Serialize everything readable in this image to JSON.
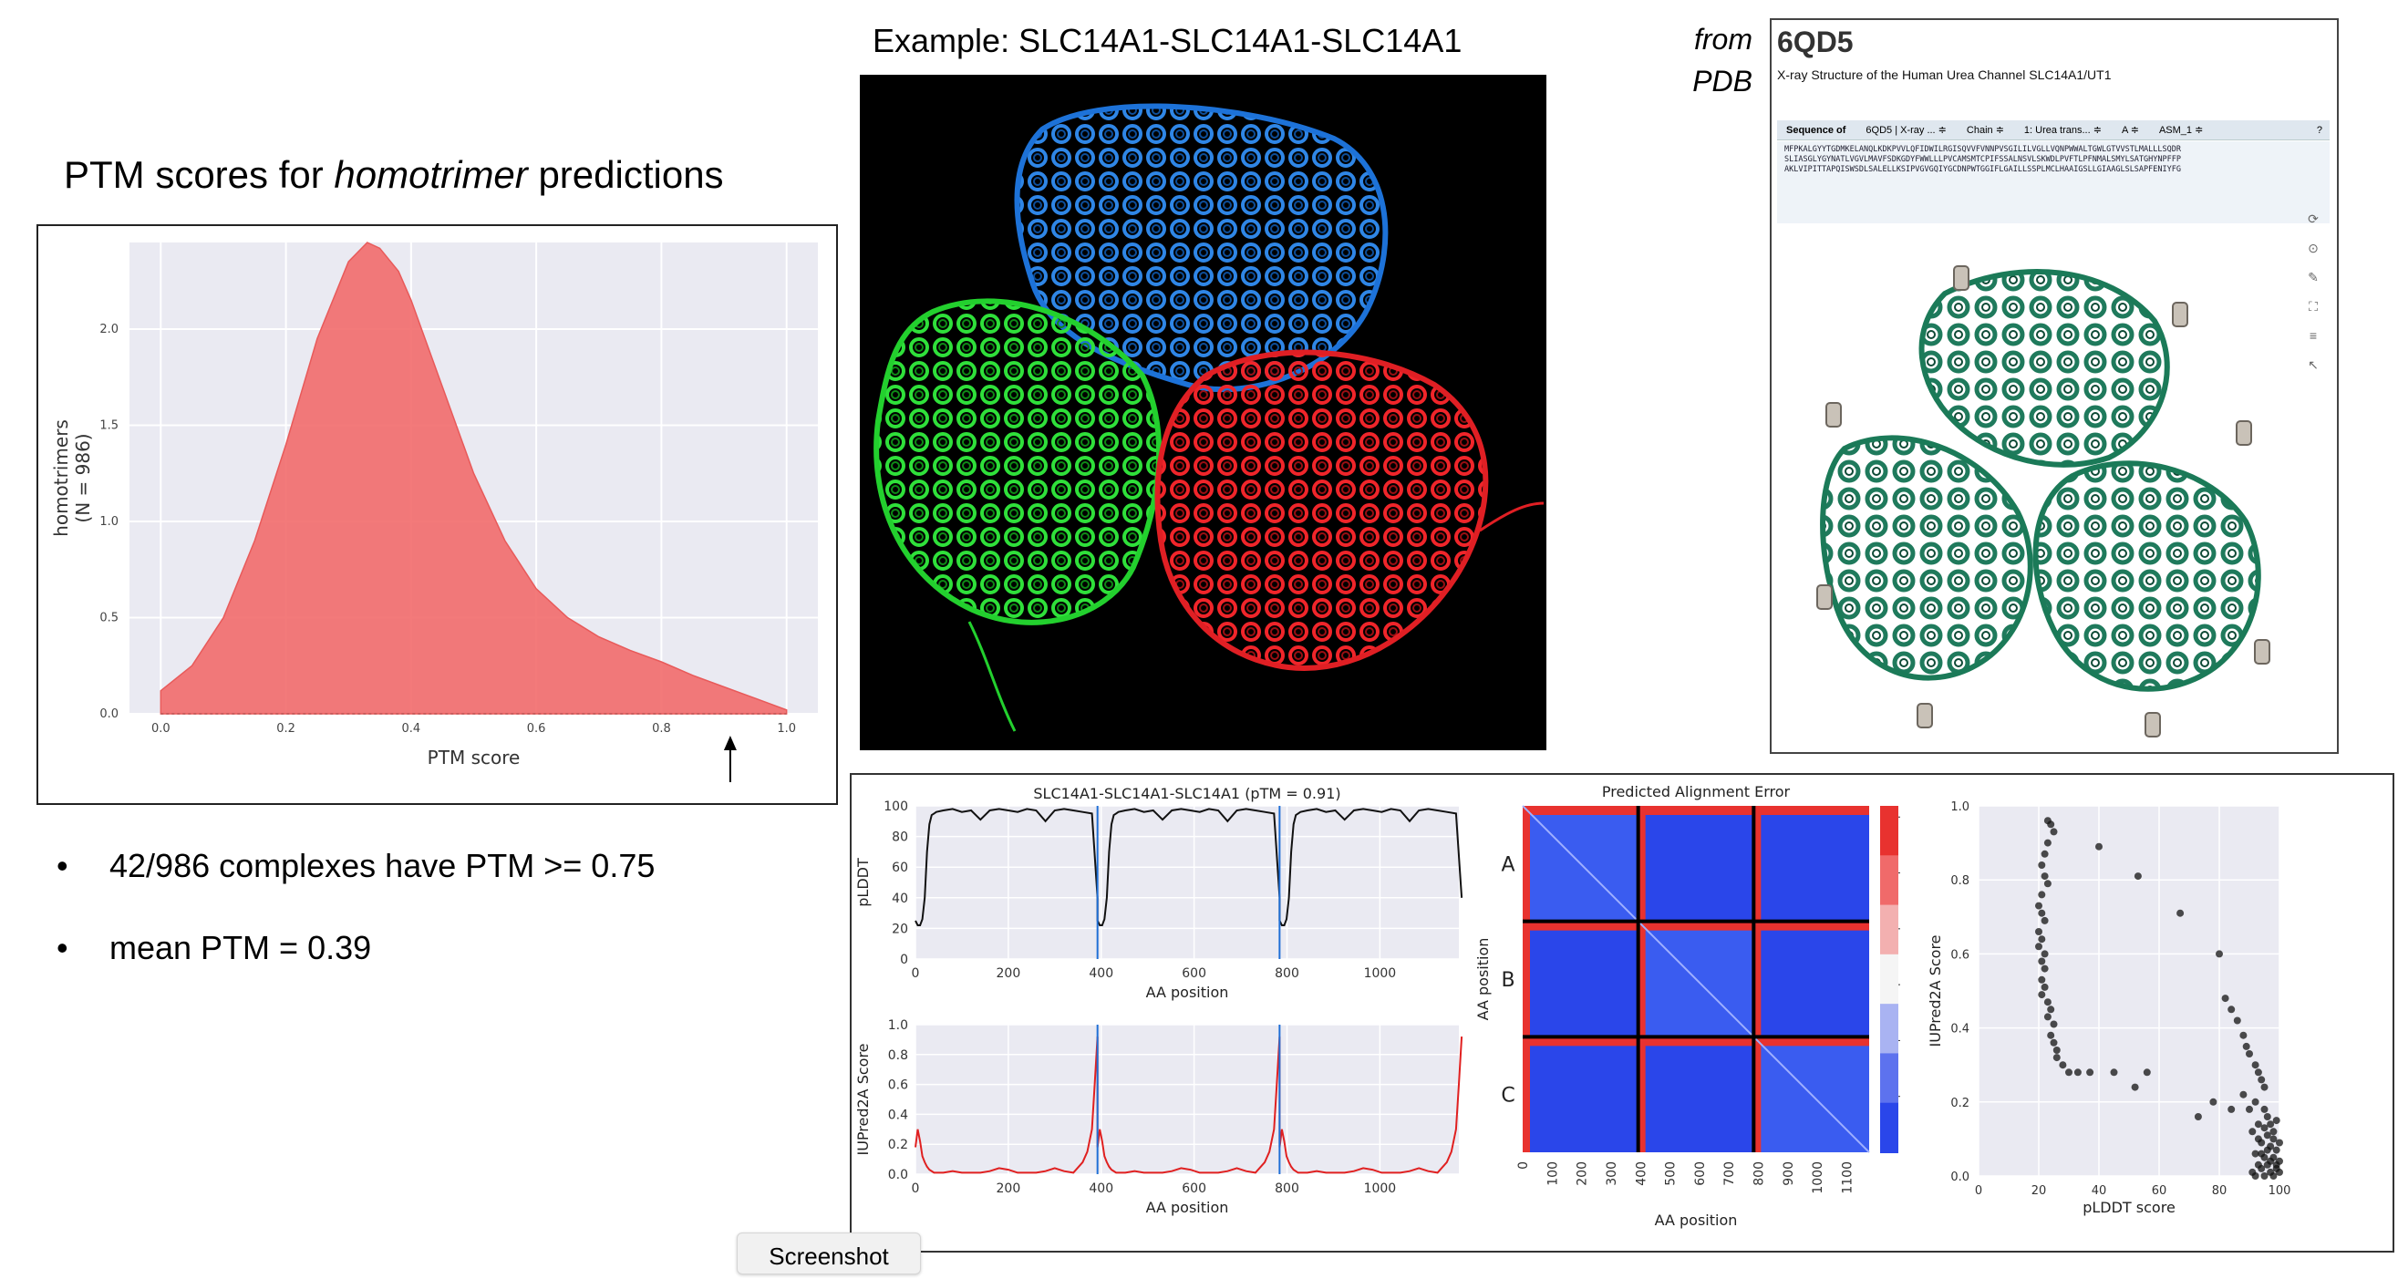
{
  "left": {
    "title_prefix": "PTM scores for ",
    "title_em": "homotrimer",
    "title_suffix": " predictions",
    "bullets": [
      "42/986 complexes have PTM >= 0.75",
      "mean PTM = 0.39"
    ]
  },
  "example_title": "Example: SLC14A1-SLC14A1-SLC14A1",
  "pdb": {
    "from_label_1": "from",
    "from_label_2": "PDB",
    "id": "6QD5",
    "description": "X-ray Structure of the Human Urea Channel SLC14A1/UT1",
    "toolbar": [
      "Sequence of",
      "6QD5 | X-ray ... ≑",
      "Chain ≑",
      "1: Urea trans... ≑",
      "A ≑",
      "ASM_1 ≑"
    ],
    "help": "?",
    "sequence_lines": [
      "MFPKALGYYTGDMKELANQLKDKPVVLQFIDWILRGISQVVFVNNPVSGILILVGLLVQNPWWALTGWLGTVVSTLMALLLSQDR",
      "SLIASGLYGYNATLVGVLMAVFSDKGDYFWWLLLPVCAMSMTCPIFSSALNSVLSKWDLPVFTLPFNMALSMYLSATGHYNPFFP",
      "AKLVIPITTAPQISWSDLSALELLKSIPVGVGQIYGCDNPWTGGIFLGAILLSSPLMCLHAAIGSLLGIAAGLSLSAPFENIYFG"
    ],
    "viewer_tools": [
      "⟳",
      "⊙",
      "✎",
      "⛶",
      "≡",
      "↖"
    ]
  },
  "density_chart": {
    "chart_data": {
      "type": "area",
      "xlabel": "PTM score",
      "ylabel": "homotrimers\n(N = 986)",
      "ylabel_line1": "homotrimers",
      "ylabel_line2": "(N = 986)",
      "xlim": [
        -0.05,
        1.05
      ],
      "ylim": [
        0,
        2.45
      ],
      "xticks": [
        "0.0",
        "0.2",
        "0.4",
        "0.6",
        "0.8",
        "1.0"
      ],
      "yticks": [
        "0.0",
        "0.5",
        "1.0",
        "1.5",
        "2.0"
      ],
      "x": [
        0.0,
        0.05,
        0.1,
        0.15,
        0.2,
        0.25,
        0.3,
        0.33,
        0.35,
        0.38,
        0.4,
        0.45,
        0.5,
        0.55,
        0.6,
        0.65,
        0.7,
        0.75,
        0.8,
        0.85,
        0.9,
        0.95,
        1.0
      ],
      "y": [
        0.12,
        0.25,
        0.5,
        0.9,
        1.4,
        1.95,
        2.35,
        2.45,
        2.42,
        2.3,
        2.15,
        1.7,
        1.25,
        0.9,
        0.65,
        0.5,
        0.4,
        0.33,
        0.27,
        0.2,
        0.14,
        0.08,
        0.02
      ],
      "arrow_x": 0.91,
      "grid": true,
      "color": "#f26b6b"
    }
  },
  "plddt_chart": {
    "chart_data": {
      "type": "line",
      "title": "SLC14A1-SLC14A1-SLC14A1 (pTM = 0.91)",
      "xlabel": "AA position",
      "ylabel": "pLDDT",
      "xlim": [
        0,
        1170
      ],
      "ylim": [
        0,
        100
      ],
      "xticks": [
        "0",
        "200",
        "400",
        "600",
        "800",
        "1000"
      ],
      "yticks": [
        "0",
        "20",
        "40",
        "60",
        "80",
        "100"
      ],
      "chain_boundaries": [
        392,
        784
      ],
      "chain_length": 392,
      "profile_x": [
        0,
        5,
        10,
        15,
        20,
        25,
        30,
        35,
        40,
        45,
        60,
        80,
        100,
        120,
        140,
        160,
        180,
        200,
        220,
        240,
        260,
        280,
        300,
        320,
        340,
        360,
        380,
        392
      ],
      "profile_y": [
        25,
        22,
        22,
        26,
        40,
        70,
        88,
        94,
        95,
        96,
        97,
        98,
        96,
        97,
        91,
        97,
        98,
        97,
        96,
        98,
        97,
        90,
        97,
        98,
        97,
        96,
        95,
        40
      ],
      "color": "#111111",
      "boundary_color": "#1f6fd6"
    }
  },
  "iupred_chart": {
    "chart_data": {
      "type": "line",
      "xlabel": "AA position",
      "ylabel": "IUPred2A Score",
      "xlim": [
        0,
        1170
      ],
      "ylim": [
        0,
        1.0
      ],
      "xticks": [
        "0",
        "200",
        "400",
        "600",
        "800",
        "1000"
      ],
      "yticks": [
        "0.0",
        "0.2",
        "0.4",
        "0.6",
        "0.8",
        "1.0"
      ],
      "chain_boundaries": [
        392,
        784
      ],
      "profile_x": [
        0,
        5,
        10,
        15,
        20,
        25,
        30,
        40,
        60,
        80,
        100,
        120,
        140,
        160,
        180,
        200,
        220,
        240,
        260,
        280,
        300,
        320,
        340,
        360,
        370,
        380,
        386,
        392
      ],
      "profile_y": [
        0.18,
        0.3,
        0.22,
        0.12,
        0.08,
        0.05,
        0.03,
        0.01,
        0.01,
        0.02,
        0.01,
        0.01,
        0.01,
        0.02,
        0.04,
        0.03,
        0.01,
        0.01,
        0.01,
        0.02,
        0.04,
        0.02,
        0.01,
        0.08,
        0.15,
        0.3,
        0.6,
        0.92
      ],
      "color": "#e02020",
      "boundary_color": "#1f6fd6"
    }
  },
  "pae_chart": {
    "chart_data": {
      "type": "heatmap",
      "title": "Predicted Alignment Error",
      "xlabel": "AA position",
      "ylabel": "AA position",
      "xticks": [
        "0",
        "100",
        "200",
        "300",
        "400",
        "500",
        "600",
        "700",
        "800",
        "900",
        "1000",
        "1100"
      ],
      "row_labels": [
        "A",
        "B",
        "C"
      ],
      "colorbar_ticks": [
        "5",
        "10",
        "15",
        "20",
        "25",
        "30"
      ],
      "value_range": [
        0,
        31
      ],
      "chain_boundaries": [
        392,
        784
      ],
      "length": 1176
    }
  },
  "scatter_chart": {
    "chart_data": {
      "type": "scatter",
      "xlabel": "pLDDT score",
      "ylabel": "IUPred2A Score",
      "xlim": [
        0,
        100
      ],
      "ylim": [
        0,
        1.0
      ],
      "xticks": [
        "0",
        "20",
        "40",
        "60",
        "80",
        "100"
      ],
      "yticks": [
        "0.0",
        "0.2",
        "0.4",
        "0.6",
        "0.8",
        "1.0"
      ],
      "points": [
        [
          23,
          0.96
        ],
        [
          24,
          0.95
        ],
        [
          25,
          0.93
        ],
        [
          23,
          0.9
        ],
        [
          22,
          0.87
        ],
        [
          21,
          0.84
        ],
        [
          22,
          0.81
        ],
        [
          23,
          0.79
        ],
        [
          21,
          0.76
        ],
        [
          20,
          0.73
        ],
        [
          21,
          0.71
        ],
        [
          22,
          0.69
        ],
        [
          20,
          0.66
        ],
        [
          21,
          0.64
        ],
        [
          20,
          0.62
        ],
        [
          22,
          0.6
        ],
        [
          21,
          0.58
        ],
        [
          22,
          0.56
        ],
        [
          21,
          0.53
        ],
        [
          22,
          0.51
        ],
        [
          21,
          0.49
        ],
        [
          23,
          0.47
        ],
        [
          24,
          0.45
        ],
        [
          23,
          0.43
        ],
        [
          25,
          0.41
        ],
        [
          24,
          0.38
        ],
        [
          25,
          0.36
        ],
        [
          26,
          0.34
        ],
        [
          26,
          0.32
        ],
        [
          28,
          0.3
        ],
        [
          30,
          0.28
        ],
        [
          33,
          0.28
        ],
        [
          37,
          0.28
        ],
        [
          45,
          0.28
        ],
        [
          52,
          0.24
        ],
        [
          56,
          0.28
        ],
        [
          40,
          0.89
        ],
        [
          53,
          0.81
        ],
        [
          67,
          0.71
        ],
        [
          80,
          0.6
        ],
        [
          82,
          0.48
        ],
        [
          84,
          0.45
        ],
        [
          86,
          0.42
        ],
        [
          88,
          0.38
        ],
        [
          89,
          0.35
        ],
        [
          90,
          0.33
        ],
        [
          92,
          0.3
        ],
        [
          93,
          0.28
        ],
        [
          94,
          0.26
        ],
        [
          95,
          0.24
        ],
        [
          88,
          0.22
        ],
        [
          92,
          0.2
        ],
        [
          90,
          0.18
        ],
        [
          95,
          0.18
        ],
        [
          96,
          0.16
        ],
        [
          93,
          0.14
        ],
        [
          97,
          0.14
        ],
        [
          91,
          0.12
        ],
        [
          96,
          0.11
        ],
        [
          98,
          0.1
        ],
        [
          94,
          0.09
        ],
        [
          97,
          0.08
        ],
        [
          99,
          0.07
        ],
        [
          92,
          0.06
        ],
        [
          95,
          0.05
        ],
        [
          98,
          0.05
        ],
        [
          100,
          0.04
        ],
        [
          93,
          0.03
        ],
        [
          96,
          0.03
        ],
        [
          99,
          0.02
        ],
        [
          94,
          0.02
        ],
        [
          97,
          0.01
        ],
        [
          100,
          0.01
        ],
        [
          91,
          0.01
        ],
        [
          98,
          0.0
        ],
        [
          95,
          0.0
        ],
        [
          92,
          0.0
        ],
        [
          99,
          0.03
        ],
        [
          97,
          0.04
        ],
        [
          94,
          0.06
        ],
        [
          96,
          0.07
        ],
        [
          100,
          0.09
        ],
        [
          98,
          0.12
        ],
        [
          95,
          0.13
        ],
        [
          93,
          0.1
        ],
        [
          99,
          0.15
        ],
        [
          84,
          0.18
        ],
        [
          78,
          0.2
        ],
        [
          73,
          0.16
        ]
      ],
      "color": "#111111"
    }
  },
  "ui": {
    "tooltip": "Screenshot"
  }
}
